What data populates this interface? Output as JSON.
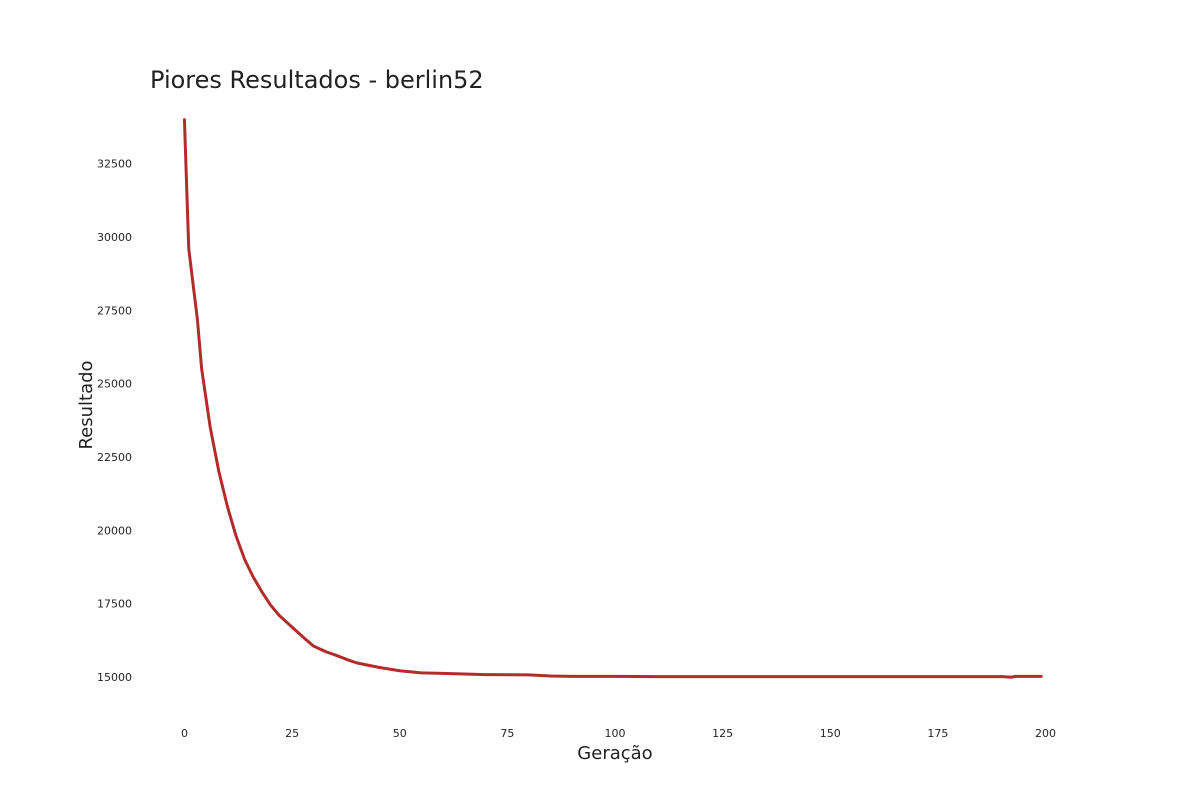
{
  "chart_data": {
    "type": "line",
    "title": "Piores Resultados - berlin52",
    "xlabel": "Geração",
    "ylabel": "Resultado",
    "xlim": [
      -8,
      208
    ],
    "ylim": [
      13600,
      34400
    ],
    "x_ticks": [
      0,
      25,
      50,
      75,
      100,
      125,
      150,
      175,
      200
    ],
    "x_tick_labels": [
      "0",
      "25",
      "50",
      "75",
      "100",
      "125",
      "150",
      "175",
      "200"
    ],
    "y_ticks": [
      15000,
      17500,
      20000,
      22500,
      25000,
      27500,
      30000,
      32500
    ],
    "y_tick_labels": [
      "15000",
      "17500",
      "20000",
      "22500",
      "25000",
      "27500",
      "30000",
      "32500"
    ],
    "grid": false,
    "line_color": "#b22c2c",
    "series": [
      {
        "x": [
          0,
          1,
          3,
          4,
          6,
          8,
          10,
          12,
          14,
          16,
          18,
          20,
          22,
          25,
          28,
          30,
          33,
          35,
          38,
          40,
          43,
          45,
          50,
          55,
          60,
          65,
          70,
          80,
          85,
          90,
          100,
          110,
          120,
          130,
          140,
          150,
          160,
          170,
          180,
          190,
          192,
          193,
          199
        ],
        "y": [
          34000,
          29600,
          27200,
          25500,
          23500,
          22000,
          20800,
          19800,
          19000,
          18400,
          17900,
          17450,
          17100,
          16700,
          16300,
          16050,
          15850,
          15750,
          15580,
          15480,
          15390,
          15330,
          15210,
          15140,
          15120,
          15100,
          15080,
          15070,
          15030,
          15020,
          15020,
          15010,
          15010,
          15010,
          15010,
          15010,
          15010,
          15010,
          15010,
          15010,
          14990,
          15020,
          15020
        ]
      }
    ]
  }
}
